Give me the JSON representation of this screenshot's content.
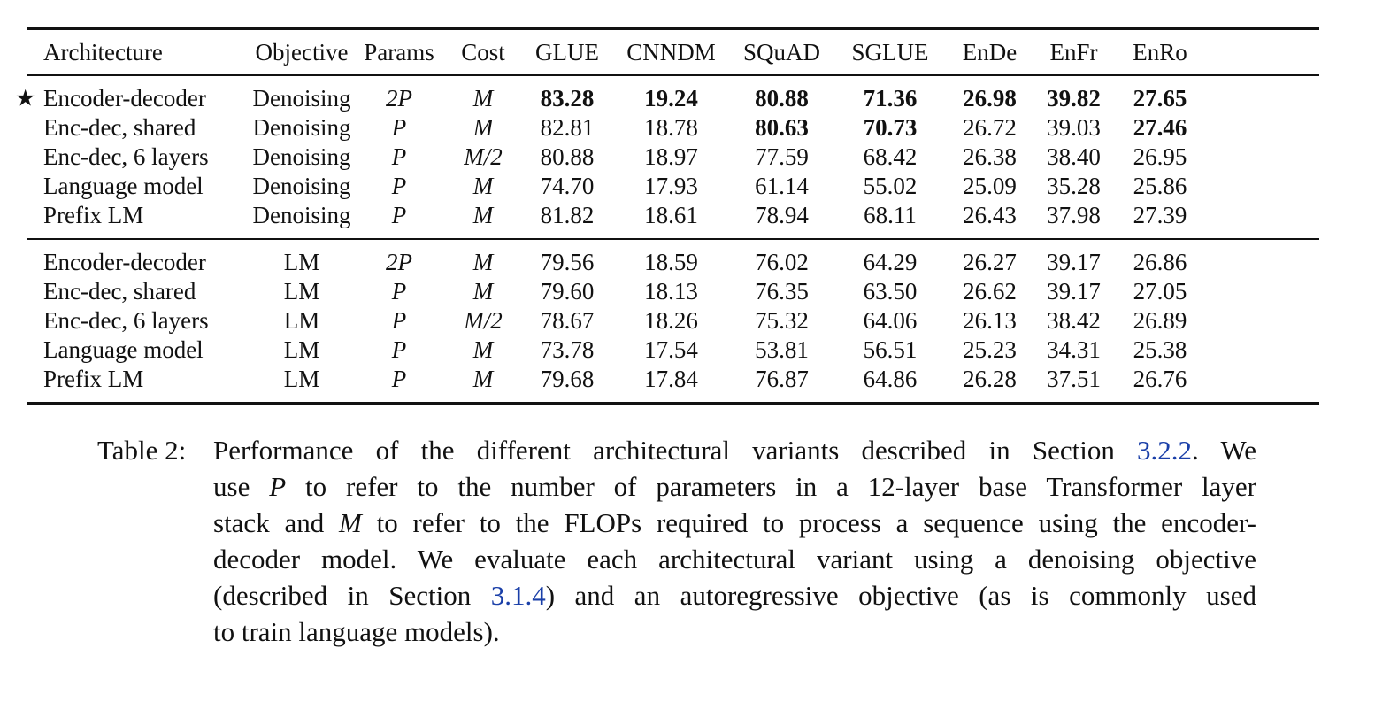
{
  "table": {
    "columns": [
      "Architecture",
      "Objective",
      "Params",
      "Cost",
      "GLUE",
      "CNNDM",
      "SQuAD",
      "SGLUE",
      "EnDe",
      "EnFr",
      "EnRo"
    ],
    "groups": [
      {
        "rows": [
          {
            "marker": "★",
            "architecture": "Encoder-decoder",
            "objective": "Denoising",
            "params": "2P",
            "cost": "M",
            "glue": "83.28",
            "cnndm": "19.24",
            "squad": "80.88",
            "sglue": "71.36",
            "ende": "26.98",
            "enfr": "39.82",
            "enro": "27.65",
            "bold": [
              "glue",
              "cnndm",
              "squad",
              "sglue",
              "ende",
              "enfr",
              "enro"
            ]
          },
          {
            "architecture": "Enc-dec, shared",
            "objective": "Denoising",
            "params": "P",
            "cost": "M",
            "glue": "82.81",
            "cnndm": "18.78",
            "squad": "80.63",
            "sglue": "70.73",
            "ende": "26.72",
            "enfr": "39.03",
            "enro": "27.46",
            "bold": [
              "squad",
              "sglue",
              "enro"
            ]
          },
          {
            "architecture": "Enc-dec, 6 layers",
            "objective": "Denoising",
            "params": "P",
            "cost": "M/2",
            "glue": "80.88",
            "cnndm": "18.97",
            "squad": "77.59",
            "sglue": "68.42",
            "ende": "26.38",
            "enfr": "38.40",
            "enro": "26.95",
            "bold": []
          },
          {
            "architecture": "Language model",
            "objective": "Denoising",
            "params": "P",
            "cost": "M",
            "glue": "74.70",
            "cnndm": "17.93",
            "squad": "61.14",
            "sglue": "55.02",
            "ende": "25.09",
            "enfr": "35.28",
            "enro": "25.86",
            "bold": []
          },
          {
            "architecture": "Prefix LM",
            "objective": "Denoising",
            "params": "P",
            "cost": "M",
            "glue": "81.82",
            "cnndm": "18.61",
            "squad": "78.94",
            "sglue": "68.11",
            "ende": "26.43",
            "enfr": "37.98",
            "enro": "27.39",
            "bold": []
          }
        ]
      },
      {
        "rows": [
          {
            "architecture": "Encoder-decoder",
            "objective": "LM",
            "params": "2P",
            "cost": "M",
            "glue": "79.56",
            "cnndm": "18.59",
            "squad": "76.02",
            "sglue": "64.29",
            "ende": "26.27",
            "enfr": "39.17",
            "enro": "26.86",
            "bold": []
          },
          {
            "architecture": "Enc-dec, shared",
            "objective": "LM",
            "params": "P",
            "cost": "M",
            "glue": "79.60",
            "cnndm": "18.13",
            "squad": "76.35",
            "sglue": "63.50",
            "ende": "26.62",
            "enfr": "39.17",
            "enro": "27.05",
            "bold": []
          },
          {
            "architecture": "Enc-dec, 6 layers",
            "objective": "LM",
            "params": "P",
            "cost": "M/2",
            "glue": "78.67",
            "cnndm": "18.26",
            "squad": "75.32",
            "sglue": "64.06",
            "ende": "26.13",
            "enfr": "38.42",
            "enro": "26.89",
            "bold": []
          },
          {
            "architecture": "Language model",
            "objective": "LM",
            "params": "P",
            "cost": "M",
            "glue": "73.78",
            "cnndm": "17.54",
            "squad": "53.81",
            "sglue": "56.51",
            "ende": "25.23",
            "enfr": "34.31",
            "enro": "25.38",
            "bold": []
          },
          {
            "architecture": "Prefix LM",
            "objective": "LM",
            "params": "P",
            "cost": "M",
            "glue": "79.68",
            "cnndm": "17.84",
            "squad": "76.87",
            "sglue": "64.86",
            "ende": "26.28",
            "enfr": "37.51",
            "enro": "26.76",
            "bold": []
          }
        ]
      }
    ]
  },
  "caption": {
    "label": "Table 2:",
    "lines": [
      [
        {
          "t": "Performance of the different architectural variants described in Section "
        },
        {
          "t": "3.2.2",
          "link": true
        },
        {
          "t": ". We"
        }
      ],
      [
        {
          "t": "use "
        },
        {
          "t": "P",
          "math": true
        },
        {
          "t": " to refer to the number of parameters in a 12-layer base Transformer layer"
        }
      ],
      [
        {
          "t": "stack and "
        },
        {
          "t": "M",
          "math": true
        },
        {
          "t": " to refer to the FLOPs required to process a sequence using the encoder-"
        }
      ],
      [
        {
          "t": "decoder model. We evaluate each architectural variant using a denoising objective"
        }
      ],
      [
        {
          "t": "(described in Section "
        },
        {
          "t": "3.1.4",
          "link": true
        },
        {
          "t": ") and an autoregressive objective (as is commonly used"
        }
      ],
      [
        {
          "t": "to train language models)."
        }
      ]
    ]
  },
  "colors": {
    "text": "#111111",
    "link": "#1a3fa8",
    "rule": "#111111"
  }
}
